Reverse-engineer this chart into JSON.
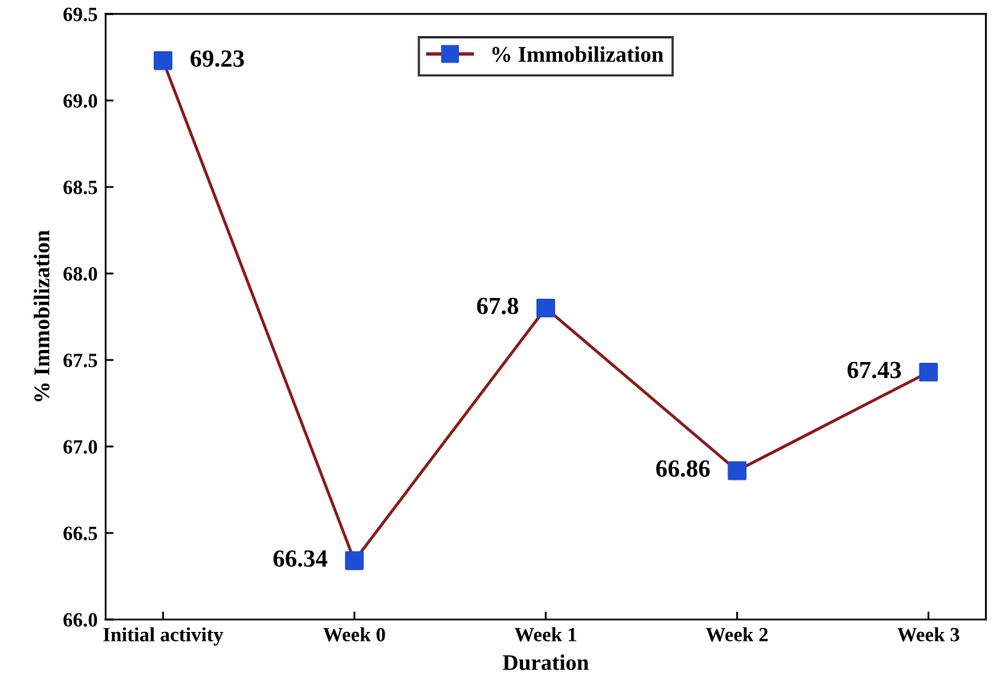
{
  "chart_data": {
    "type": "line",
    "xlabel": "Duration",
    "ylabel": "% Immobilization",
    "categories": [
      "Initial activity",
      "Week 0",
      "Week 1",
      "Week 2",
      "Week 3"
    ],
    "series": [
      {
        "name": "% Immobilization",
        "color": "#8b1a1a",
        "values": [
          69.23,
          66.34,
          67.8,
          66.86,
          67.43
        ]
      }
    ],
    "colors": [
      "#1c4fd6",
      "#1c4fd6",
      "#1c4fd6",
      "#1c4fd6",
      "#1c4fd6"
    ],
    "marker": "square",
    "line_style": "solid",
    "data_labels": true,
    "legend": "top",
    "grid": false,
    "ylim": [
      66.0,
      69.5
    ],
    "yticks": [
      {
        "value": 66.0,
        "label": "66.0"
      },
      {
        "value": 66.5,
        "label": "66.5"
      },
      {
        "value": 67.0,
        "label": "67.0"
      },
      {
        "value": 67.5,
        "label": "67.5"
      },
      {
        "value": 68.0,
        "label": "68.0"
      },
      {
        "value": 68.5,
        "label": "68.5"
      },
      {
        "value": 69.0,
        "label": "69.0"
      },
      {
        "value": 69.5,
        "label": "69.5"
      }
    ]
  }
}
